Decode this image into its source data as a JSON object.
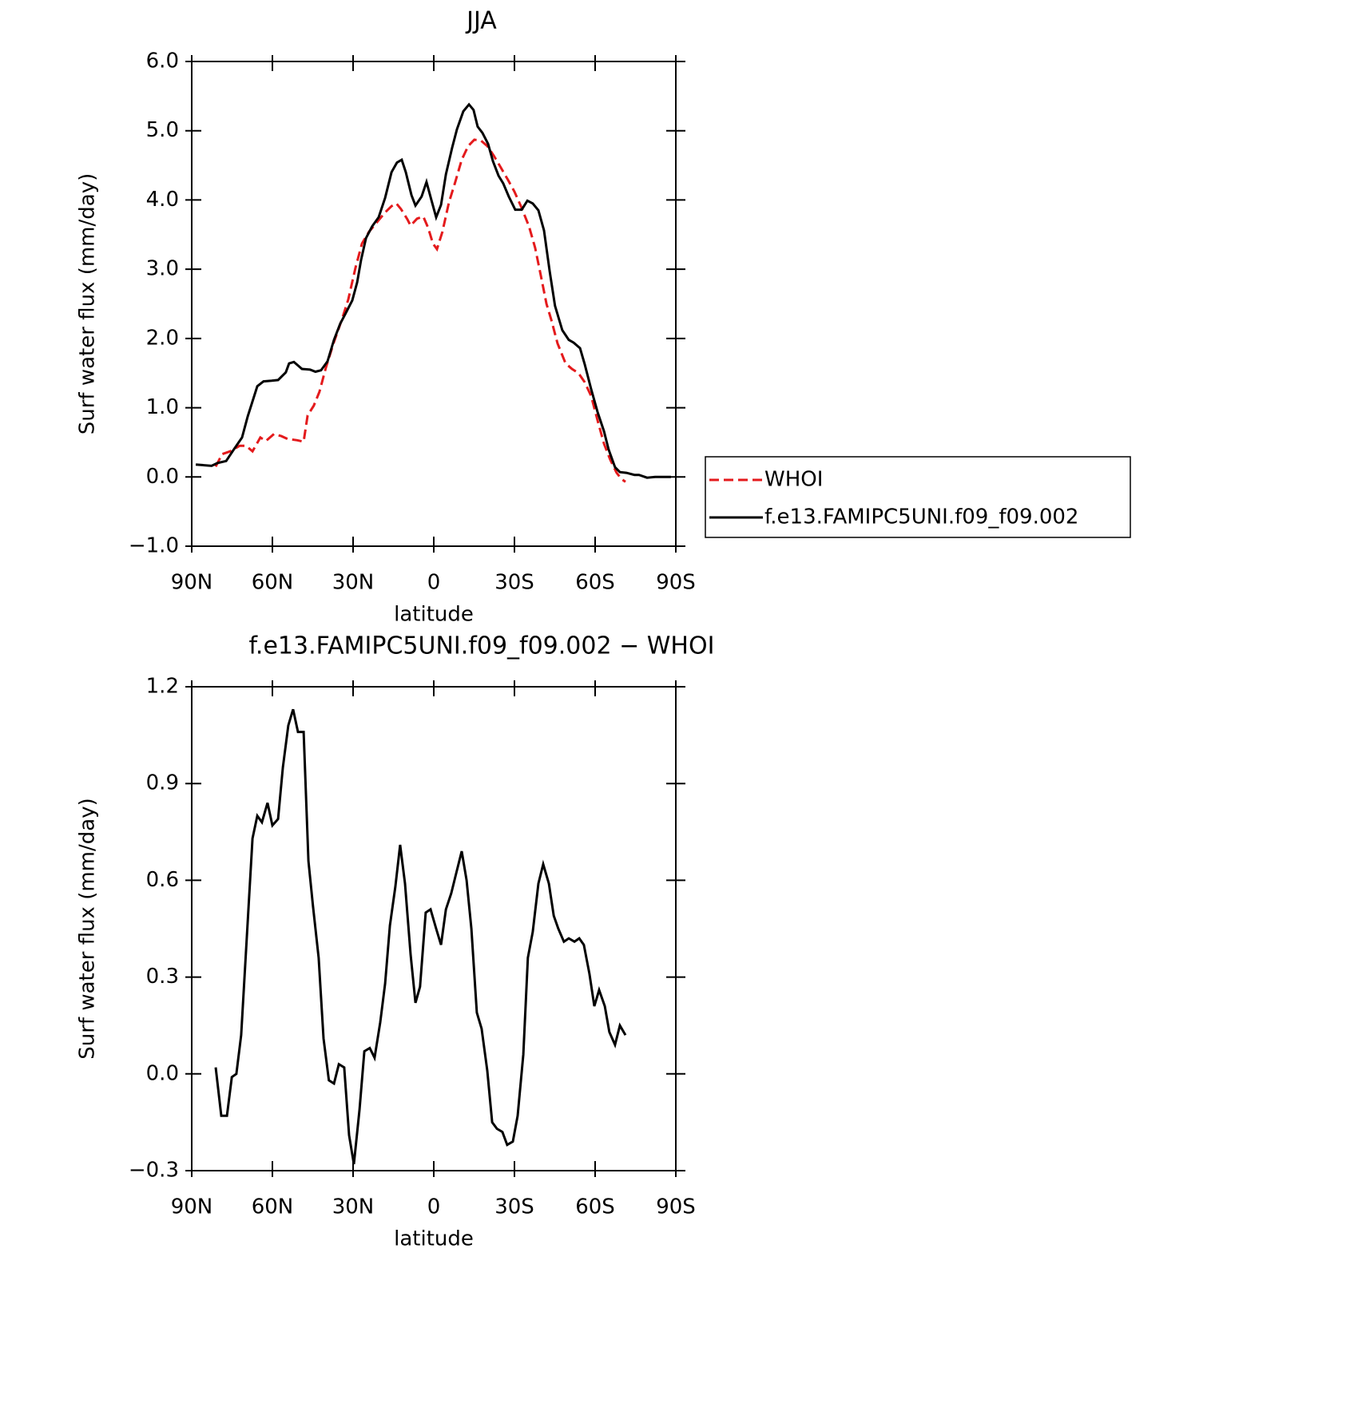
{
  "chart_data": [
    {
      "type": "line",
      "title": "JJA",
      "xlabel": "latitude",
      "ylabel": "Surf water flux (mm/day)",
      "xlim": [
        90,
        -90
      ],
      "ylim": [
        -1,
        6
      ],
      "xticks": [
        {
          "value": 90,
          "label": "90N"
        },
        {
          "value": 60,
          "label": "60N"
        },
        {
          "value": 30,
          "label": "30N"
        },
        0,
        {
          "value": -30,
          "label": "30S"
        },
        {
          "value": -60,
          "label": "60S"
        },
        {
          "value": -90,
          "label": "90S"
        }
      ],
      "yticks": [
        {
          "value": -1,
          "label": "−1.0"
        },
        {
          "value": 0,
          "label": "0.0"
        },
        {
          "value": 1,
          "label": "1.0"
        },
        {
          "value": 2,
          "label": "2.0"
        },
        {
          "value": 3,
          "label": "3.0"
        },
        {
          "value": 4,
          "label": "4.0"
        },
        {
          "value": 5,
          "label": "5.0"
        },
        {
          "value": 6,
          "label": "6.0"
        }
      ],
      "legend": "right",
      "series": [
        {
          "name": "WHOI",
          "color": "#e41a1c",
          "dash": true,
          "x": [
            81.1,
            78.7,
            75.7,
            72.2,
            69.8,
            67.4,
            64.5,
            62.4,
            59.4,
            56.7,
            54.4,
            50.8,
            48.4,
            46.9,
            44.6,
            42.5,
            40.1,
            37.1,
            34.2,
            31.8,
            29.1,
            26.7,
            24.1,
            21.1,
            18.1,
            15.7,
            13.9,
            12.2,
            9.8,
            8.6,
            6.2,
            3.9,
            2.1,
            0.3,
            -1.2,
            -3.2,
            -5.6,
            -8.0,
            -10.4,
            -12.8,
            -15.1,
            -17.5,
            -19.9,
            -22.3,
            -24.6,
            -27.6,
            -30.0,
            -32.4,
            -35.4,
            -37.7,
            -39.8,
            -41.9,
            -43.7,
            -46.0,
            -49.0,
            -51.4,
            -53.8,
            -56.1,
            -58.5,
            -60.9,
            -63.3,
            -65.6,
            -68.0,
            -69.8,
            -71.3
          ],
          "values": [
            0.15,
            0.33,
            0.37,
            0.45,
            0.45,
            0.37,
            0.57,
            0.52,
            0.62,
            0.59,
            0.55,
            0.53,
            0.51,
            0.89,
            1.03,
            1.23,
            1.58,
            1.95,
            2.27,
            2.56,
            3.02,
            3.37,
            3.54,
            3.68,
            3.82,
            3.91,
            3.95,
            3.87,
            3.72,
            3.63,
            3.73,
            3.76,
            3.6,
            3.37,
            3.29,
            3.54,
            3.96,
            4.26,
            4.58,
            4.78,
            4.87,
            4.86,
            4.78,
            4.64,
            4.49,
            4.29,
            4.12,
            3.91,
            3.62,
            3.31,
            2.91,
            2.5,
            2.27,
            1.93,
            1.64,
            1.56,
            1.5,
            1.37,
            1.17,
            0.82,
            0.48,
            0.25,
            0.06,
            -0.03,
            -0.07
          ]
        },
        {
          "name": "f.e13.FAMIPC5UNI.f09_f09.002",
          "color": "#000000",
          "dash": false,
          "x": [
            88.5,
            82.6,
            80.5,
            77.2,
            74.3,
            71.3,
            69.2,
            65.6,
            63.3,
            60.3,
            57.9,
            55.0,
            53.8,
            52.0,
            49.0,
            46.0,
            44.0,
            41.9,
            39.5,
            37.1,
            34.8,
            32.4,
            30.3,
            28.5,
            27.0,
            25.2,
            22.9,
            20.5,
            18.1,
            15.7,
            13.7,
            11.9,
            10.4,
            8.3,
            6.8,
            4.5,
            2.7,
            0.9,
            -0.9,
            -2.7,
            -4.5,
            -6.8,
            -8.6,
            -11.0,
            -13.1,
            -14.8,
            -16.3,
            -18.1,
            -20.2,
            -22.0,
            -24.1,
            -25.8,
            -27.9,
            -30.3,
            -32.7,
            -34.8,
            -36.8,
            -38.9,
            -41.0,
            -43.1,
            -45.1,
            -47.8,
            -50.2,
            -52.0,
            -54.4,
            -56.1,
            -58.5,
            -60.9,
            -63.3,
            -65.0,
            -67.4,
            -69.2,
            -71.6,
            -74.6,
            -76.3,
            -79.3,
            -82.3,
            -85.2,
            -88.2
          ],
          "values": [
            0.18,
            0.16,
            0.2,
            0.23,
            0.4,
            0.57,
            0.87,
            1.31,
            1.38,
            1.39,
            1.4,
            1.51,
            1.64,
            1.66,
            1.56,
            1.55,
            1.52,
            1.54,
            1.67,
            1.98,
            2.21,
            2.39,
            2.55,
            2.81,
            3.14,
            3.45,
            3.62,
            3.75,
            4.03,
            4.4,
            4.54,
            4.58,
            4.4,
            4.07,
            3.92,
            4.05,
            4.26,
            4.0,
            3.75,
            3.93,
            4.37,
            4.75,
            5.02,
            5.28,
            5.38,
            5.3,
            5.06,
            4.97,
            4.81,
            4.56,
            4.35,
            4.24,
            4.05,
            3.86,
            3.86,
            3.99,
            3.95,
            3.85,
            3.56,
            2.97,
            2.47,
            2.12,
            1.98,
            1.94,
            1.86,
            1.63,
            1.27,
            0.94,
            0.66,
            0.4,
            0.14,
            0.07,
            0.06,
            0.03,
            0.03,
            -0.01,
            0.0,
            0.0,
            0.0
          ]
        }
      ]
    },
    {
      "type": "line",
      "title": "f.e13.FAMIPC5UNI.f09_f09.002 − WHOI",
      "xlabel": "latitude",
      "ylabel": "Surf water flux (mm/day)",
      "xlim": [
        90,
        -90
      ],
      "ylim": [
        -0.3,
        1.2
      ],
      "xticks": [
        {
          "value": 90,
          "label": "90N"
        },
        {
          "value": 60,
          "label": "60N"
        },
        {
          "value": 30,
          "label": "30N"
        },
        0,
        {
          "value": -30,
          "label": "30S"
        },
        {
          "value": -60,
          "label": "60S"
        },
        {
          "value": -90,
          "label": "90S"
        }
      ],
      "yticks": [
        {
          "value": -0.3,
          "label": "−0.3"
        },
        {
          "value": 0,
          "label": "0.0"
        },
        0.3,
        0.6,
        0.9,
        1.2
      ],
      "series": [
        {
          "color": "#000000",
          "dash": false,
          "x": [
            81.1,
            79.0,
            76.9,
            75.1,
            73.4,
            71.6,
            67.4,
            65.6,
            63.9,
            61.8,
            60.0,
            57.9,
            56.1,
            54.1,
            52.3,
            50.5,
            48.4,
            46.6,
            44.9,
            42.8,
            41.0,
            39.0,
            37.1,
            35.3,
            33.3,
            31.5,
            29.7,
            27.6,
            25.8,
            23.8,
            22.0,
            19.9,
            18.1,
            16.3,
            14.3,
            12.5,
            10.7,
            8.6,
            6.8,
            5.1,
            3.0,
            1.2,
            -0.9,
            -2.7,
            -4.5,
            -6.5,
            -8.3,
            -10.4,
            -12.2,
            -14.0,
            -16.0,
            -17.8,
            -19.9,
            -21.7,
            -23.5,
            -25.5,
            -27.3,
            -29.4,
            -31.2,
            -33.3,
            -35.0,
            -36.8,
            -38.9,
            -40.7,
            -42.8,
            -44.6,
            -46.3,
            -48.4,
            -50.2,
            -52.3,
            -54.1,
            -55.8,
            -57.9,
            -59.7,
            -61.5,
            -63.6,
            -65.3,
            -67.4,
            -69.2,
            -71.3
          ],
          "values": [
            0.02,
            -0.13,
            -0.13,
            -0.01,
            0.0,
            0.12,
            0.73,
            0.8,
            0.78,
            0.84,
            0.77,
            0.79,
            0.95,
            1.08,
            1.13,
            1.06,
            1.06,
            0.66,
            0.52,
            0.36,
            0.11,
            -0.02,
            -0.03,
            0.03,
            0.02,
            -0.19,
            -0.28,
            -0.11,
            0.07,
            0.08,
            0.05,
            0.16,
            0.28,
            0.46,
            0.58,
            0.71,
            0.59,
            0.37,
            0.22,
            0.27,
            0.5,
            0.51,
            0.45,
            0.4,
            0.51,
            0.56,
            0.62,
            0.69,
            0.6,
            0.45,
            0.19,
            0.14,
            0.01,
            -0.15,
            -0.17,
            -0.18,
            -0.22,
            -0.21,
            -0.13,
            0.06,
            0.36,
            0.44,
            0.59,
            0.65,
            0.59,
            0.49,
            0.45,
            0.41,
            0.42,
            0.41,
            0.42,
            0.4,
            0.31,
            0.21,
            0.26,
            0.21,
            0.13,
            0.09,
            0.15,
            0.12
          ]
        }
      ]
    }
  ]
}
